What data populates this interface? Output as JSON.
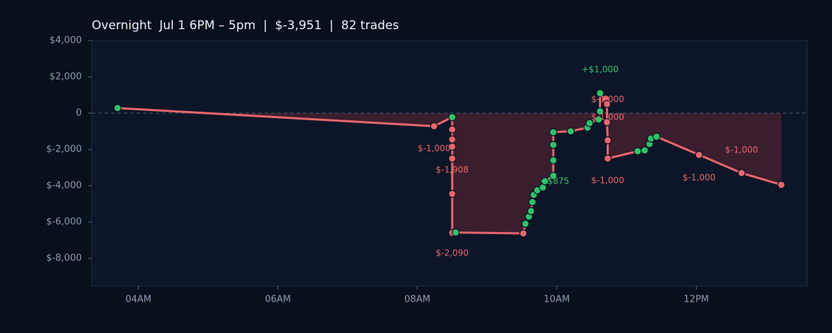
{
  "chart_data": {
    "type": "line",
    "title": "Overnight  Jul 1 6PM – 5pm  |  $-3,951  |  82 trades",
    "x": [
      3.7,
      8.24,
      8.5,
      8.5,
      8.5,
      8.5,
      8.5,
      8.5,
      8.5,
      8.55,
      9.52,
      9.55,
      9.6,
      9.63,
      9.65,
      9.67,
      9.72,
      9.8,
      9.83,
      9.95,
      9.95,
      9.95,
      9.95,
      10.2,
      10.44,
      10.47,
      10.6,
      10.62,
      10.62,
      10.7,
      10.72,
      10.72,
      10.73,
      10.73,
      11.16,
      11.26,
      11.33,
      11.35,
      11.43,
      12.04,
      12.65,
      13.22
    ],
    "values": [
      280,
      -720,
      -220,
      -900,
      -1450,
      -1850,
      -2500,
      -4450,
      -6600,
      -6580,
      -6630,
      -6100,
      -5700,
      -5400,
      -4900,
      -4500,
      -4250,
      -4100,
      -3750,
      -3450,
      -2600,
      -1750,
      -1050,
      -1000,
      -800,
      -550,
      -350,
      100,
      1100,
      800,
      500,
      -500,
      -1500,
      -2500,
      -2100,
      -2050,
      -1700,
      -1400,
      -1300,
      -2300,
      -3300,
      -3951
    ],
    "color": "#e8666c",
    "up_color": "#2fc26b",
    "down_color": "#e8666c",
    "fill_color": "#4a2230",
    "xlim": [
      3.33,
      13.59
    ],
    "xticks": [
      {
        "value": 4,
        "label": "04AM"
      },
      {
        "value": 6,
        "label": "06AM"
      },
      {
        "value": 8,
        "label": "08AM"
      },
      {
        "value": 10,
        "label": "10AM"
      },
      {
        "value": 12,
        "label": "12PM"
      }
    ],
    "ylim": [
      -9530,
      4000
    ],
    "yticks": [
      {
        "value": 4000,
        "label": "$4,000"
      },
      {
        "value": 2000,
        "label": "$2,000"
      },
      0,
      {
        "value": -2000,
        "label": "$-2,000"
      },
      {
        "value": -4000,
        "label": "$-4,000"
      },
      {
        "value": -6000,
        "label": "$-6,000"
      },
      {
        "value": -8000,
        "label": "$-8,000"
      }
    ],
    "zero_line": true,
    "annotations": [
      {
        "text": "+$1,000",
        "x": 10.62,
        "y": 2390,
        "color": "#2fc26b"
      },
      {
        "text": "$-1,000",
        "x": 8.24,
        "y": -1960,
        "color": "#e8666c"
      },
      {
        "text": "$-1,908",
        "x": 8.5,
        "y": -3140,
        "color": "#e8666c"
      },
      {
        "text": "$-2,090",
        "x": 8.5,
        "y": -7730,
        "color": "#e8666c"
      },
      {
        "text": "+$875",
        "x": 9.97,
        "y": -3760,
        "color": "#2fc26b"
      },
      {
        "text": "$-1,000",
        "x": 10.73,
        "y": 750,
        "color": "#e8666c"
      },
      {
        "text": "$-1,000",
        "x": 10.73,
        "y": -240,
        "color": "#e8666c"
      },
      {
        "text": "$-1,000",
        "x": 10.73,
        "y": -3730,
        "color": "#e8666c"
      },
      {
        "text": "$-1,000",
        "x": 12.04,
        "y": -3570,
        "color": "#e8666c"
      },
      {
        "text": "$-1,000",
        "x": 12.65,
        "y": -2040,
        "color": "#e8666c"
      }
    ]
  }
}
